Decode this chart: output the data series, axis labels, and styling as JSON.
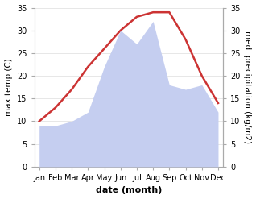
{
  "months": [
    "Jan",
    "Feb",
    "Mar",
    "Apr",
    "May",
    "Jun",
    "Jul",
    "Aug",
    "Sep",
    "Oct",
    "Nov",
    "Dec"
  ],
  "temperature": [
    10,
    13,
    17,
    22,
    26,
    30,
    33,
    34,
    34,
    28,
    20,
    14
  ],
  "precipitation": [
    9,
    9,
    10,
    12,
    22,
    30,
    27,
    32,
    18,
    17,
    18,
    12
  ],
  "temp_color": "#cc3333",
  "precip_color": "#c5cef0",
  "background_color": "#ffffff",
  "ylabel_left": "max temp (C)",
  "ylabel_right": "med. precipitation (kg/m2)",
  "xlabel": "date (month)",
  "ylim": [
    0,
    35
  ],
  "temp_linewidth": 1.8,
  "xlabel_fontsize": 8,
  "ylabel_fontsize": 7.5,
  "tick_fontsize": 7
}
